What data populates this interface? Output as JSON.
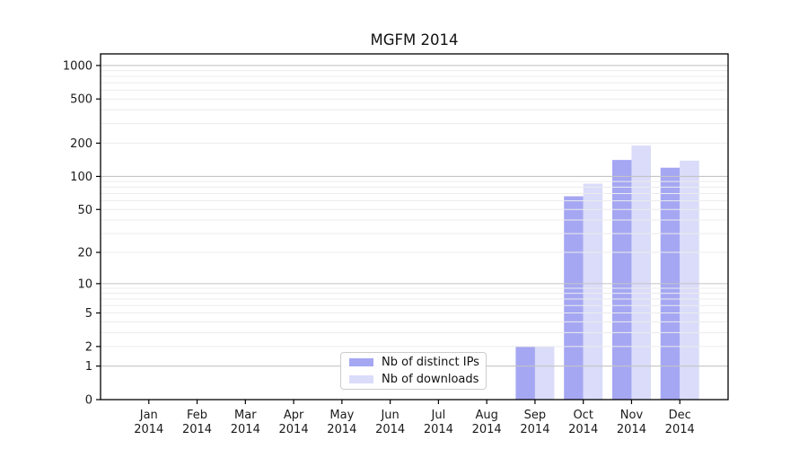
{
  "chart_data": {
    "type": "bar",
    "title": "MGFM 2014",
    "xlabel": "",
    "ylabel": "",
    "year_label": "2014",
    "categories": [
      "Jan",
      "Feb",
      "Mar",
      "Apr",
      "May",
      "Jun",
      "Jul",
      "Aug",
      "Sep",
      "Oct",
      "Nov",
      "Dec"
    ],
    "series": [
      {
        "name": "Nb of distinct IPs",
        "color": "#a5a7f3",
        "values": [
          0,
          0,
          0,
          0,
          0,
          0,
          0,
          0,
          2,
          66,
          141,
          120
        ]
      },
      {
        "name": "Nb of downloads",
        "color": "#dadcf9",
        "values": [
          0,
          0,
          0,
          0,
          0,
          0,
          0,
          0,
          2,
          86,
          190,
          139
        ]
      }
    ],
    "yscale": "log1p",
    "yticks": [
      0,
      1,
      2,
      5,
      10,
      20,
      50,
      100,
      200,
      500,
      1000
    ],
    "ylim": [
      0,
      1270
    ],
    "grid": {
      "major_values": [
        1,
        10,
        100,
        1000
      ],
      "major_color": "#c4c4c4",
      "minor_color": "#ececec",
      "grid_above_bars": true
    },
    "legend_position": "lower center-left",
    "axis_color": "#000000",
    "text_color": "#1a1a1a",
    "background": "#ffffff"
  }
}
